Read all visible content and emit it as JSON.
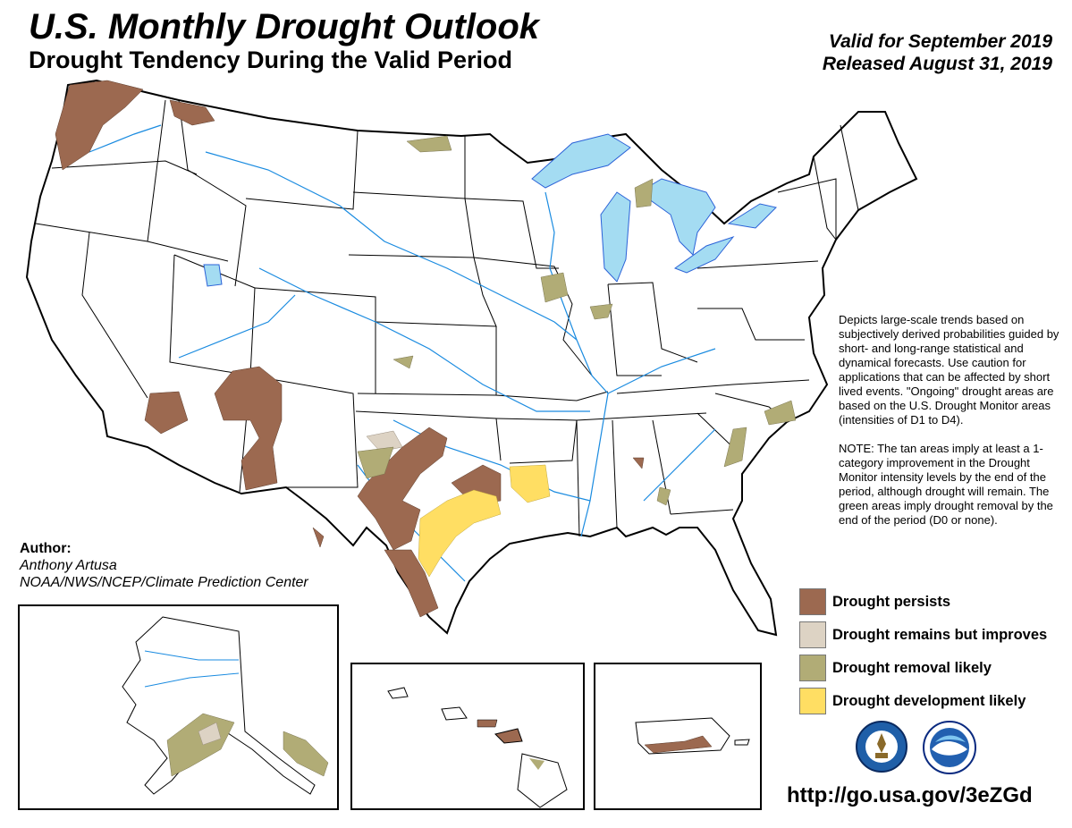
{
  "header": {
    "title": "U.S. Monthly Drought Outlook",
    "subtitle": "Drought Tendency During the Valid Period",
    "valid_line": "Valid for September 2019",
    "released_line": "Released August 31, 2019"
  },
  "description": {
    "paragraph1": "Depicts large-scale trends based on subjectively derived probabilities guided by short- and long-range statistical and dynamical forecasts. Use caution for applications that can be affected by short lived events. \"Ongoing\" drought areas are based on the U.S. Drought Monitor areas (intensities of D1 to D4).",
    "paragraph2": "NOTE: The tan areas imply at least a 1-category improvement in the Drought Monitor intensity levels by the end of the period, although drought will remain. The green areas imply drought removal by the end of the period (D0 or none)."
  },
  "author": {
    "label": "Author:",
    "name": "Anthony Artusa",
    "affiliation": "NOAA/NWS/NCEP/Climate Prediction Center"
  },
  "legend": [
    {
      "label": "Drought persists",
      "color": "#9c6950"
    },
    {
      "label": "Drought remains but improves",
      "color": "#ddd3c4"
    },
    {
      "label": "Drought removal likely",
      "color": "#b1ac76"
    },
    {
      "label": "Drought development likely",
      "color": "#ffde63"
    }
  ],
  "colors": {
    "water": "#a4dcf2",
    "rivers": "#1a8be0",
    "boundaries": "#000000"
  },
  "logos": [
    "nws-logo",
    "noaa-logo"
  ],
  "footer": {
    "url": "http://go.usa.gov/3eZGd"
  }
}
